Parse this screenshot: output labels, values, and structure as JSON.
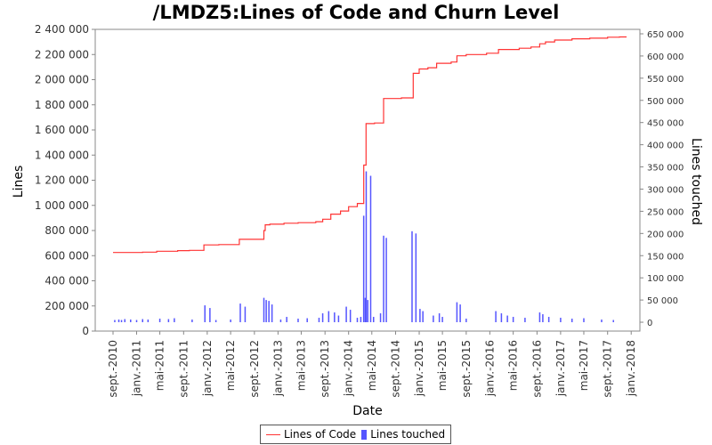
{
  "chart_data": {
    "type": "line",
    "title": "/LMDZ5:Lines of Code and Churn Level",
    "xlabel": "Date",
    "ylabel": "Lines",
    "y2label": "Lines touched",
    "xlim": [
      "2010-06-01",
      "2018-02-15"
    ],
    "ylim": [
      0,
      2400000
    ],
    "y2lim": [
      -20000,
      660000
    ],
    "x_ticks": [
      {
        "date": "2010-09-01",
        "label": "sept.-2010"
      },
      {
        "date": "2011-01-01",
        "label": "janv.-2011"
      },
      {
        "date": "2011-05-01",
        "label": "mai-2011"
      },
      {
        "date": "2011-09-01",
        "label": "sept.-2011"
      },
      {
        "date": "2012-01-01",
        "label": "janv.-2012"
      },
      {
        "date": "2012-05-01",
        "label": "mai-2012"
      },
      {
        "date": "2012-09-01",
        "label": "sept.-2012"
      },
      {
        "date": "2013-01-01",
        "label": "janv.-2013"
      },
      {
        "date": "2013-05-01",
        "label": "mai-2013"
      },
      {
        "date": "2013-09-01",
        "label": "sept.-2013"
      },
      {
        "date": "2014-01-01",
        "label": "janv.-2014"
      },
      {
        "date": "2014-05-01",
        "label": "mai-2014"
      },
      {
        "date": "2014-09-01",
        "label": "sept.-2014"
      },
      {
        "date": "2015-01-01",
        "label": "janv.-2015"
      },
      {
        "date": "2015-05-01",
        "label": "mai-2015"
      },
      {
        "date": "2015-09-01",
        "label": "sept.-2015"
      },
      {
        "date": "2016-01-01",
        "label": "janv.-2016"
      },
      {
        "date": "2016-05-01",
        "label": "mai-2016"
      },
      {
        "date": "2016-09-01",
        "label": "sept.-2016"
      },
      {
        "date": "2017-01-01",
        "label": "janv.-2017"
      },
      {
        "date": "2017-05-01",
        "label": "mai-2017"
      },
      {
        "date": "2017-09-01",
        "label": "sept.-2017"
      },
      {
        "date": "2018-01-01",
        "label": "janv.-2018"
      }
    ],
    "y_ticks": [
      {
        "value": 0,
        "label": "0"
      },
      {
        "value": 200000,
        "label": "200 000"
      },
      {
        "value": 400000,
        "label": "400 000"
      },
      {
        "value": 600000,
        "label": "600 000"
      },
      {
        "value": 800000,
        "label": "800 000"
      },
      {
        "value": 1000000,
        "label": "1 000 000"
      },
      {
        "value": 1200000,
        "label": "1 200 000"
      },
      {
        "value": 1400000,
        "label": "1 400 000"
      },
      {
        "value": 1600000,
        "label": "1 600 000"
      },
      {
        "value": 1800000,
        "label": "1 800 000"
      },
      {
        "value": 2000000,
        "label": "2 000 000"
      },
      {
        "value": 2200000,
        "label": "2 200 000"
      },
      {
        "value": 2400000,
        "label": "2 400 000"
      }
    ],
    "y2_ticks": [
      {
        "value": 0,
        "label": "0"
      },
      {
        "value": 50000,
        "label": "50 000"
      },
      {
        "value": 100000,
        "label": "100 000"
      },
      {
        "value": 150000,
        "label": "150 000"
      },
      {
        "value": 200000,
        "label": "200 000"
      },
      {
        "value": 250000,
        "label": "250 000"
      },
      {
        "value": 300000,
        "label": "300 000"
      },
      {
        "value": 350000,
        "label": "350 000"
      },
      {
        "value": 400000,
        "label": "400 000"
      },
      {
        "value": 450000,
        "label": "450 000"
      },
      {
        "value": 500000,
        "label": "500 000"
      },
      {
        "value": 550000,
        "label": "550 000"
      },
      {
        "value": 600000,
        "label": "600 000"
      },
      {
        "value": 650000,
        "label": "650 000"
      }
    ],
    "series": [
      {
        "name": "Lines of Code",
        "axis": "left",
        "style": "step-line",
        "color": "#ff3333",
        "points": [
          {
            "x": "2010-09-01",
            "y": 625000
          },
          {
            "x": "2011-02-01",
            "y": 628000
          },
          {
            "x": "2011-04-15",
            "y": 635000
          },
          {
            "x": "2011-08-01",
            "y": 640000
          },
          {
            "x": "2011-10-01",
            "y": 642000
          },
          {
            "x": "2011-12-15",
            "y": 685000
          },
          {
            "x": "2012-03-01",
            "y": 688000
          },
          {
            "x": "2012-06-15",
            "y": 730000
          },
          {
            "x": "2012-10-20",
            "y": 800000
          },
          {
            "x": "2012-10-27",
            "y": 845000
          },
          {
            "x": "2012-11-20",
            "y": 850000
          },
          {
            "x": "2013-02-01",
            "y": 858000
          },
          {
            "x": "2013-04-15",
            "y": 862000
          },
          {
            "x": "2013-07-15",
            "y": 870000
          },
          {
            "x": "2013-08-20",
            "y": 890000
          },
          {
            "x": "2013-10-01",
            "y": 930000
          },
          {
            "x": "2013-11-20",
            "y": 955000
          },
          {
            "x": "2014-01-01",
            "y": 990000
          },
          {
            "x": "2014-02-15",
            "y": 1015000
          },
          {
            "x": "2014-03-20",
            "y": 1320000
          },
          {
            "x": "2014-04-01",
            "y": 1650000
          },
          {
            "x": "2014-05-15",
            "y": 1655000
          },
          {
            "x": "2014-07-01",
            "y": 1850000
          },
          {
            "x": "2014-10-01",
            "y": 1855000
          },
          {
            "x": "2014-12-01",
            "y": 2050000
          },
          {
            "x": "2015-01-01",
            "y": 2085000
          },
          {
            "x": "2015-02-15",
            "y": 2095000
          },
          {
            "x": "2015-04-01",
            "y": 2130000
          },
          {
            "x": "2015-06-15",
            "y": 2140000
          },
          {
            "x": "2015-07-15",
            "y": 2190000
          },
          {
            "x": "2015-09-01",
            "y": 2200000
          },
          {
            "x": "2015-12-15",
            "y": 2210000
          },
          {
            "x": "2016-02-15",
            "y": 2240000
          },
          {
            "x": "2016-06-01",
            "y": 2250000
          },
          {
            "x": "2016-08-01",
            "y": 2260000
          },
          {
            "x": "2016-09-15",
            "y": 2285000
          },
          {
            "x": "2016-10-15",
            "y": 2300000
          },
          {
            "x": "2016-12-01",
            "y": 2315000
          },
          {
            "x": "2017-03-01",
            "y": 2325000
          },
          {
            "x": "2017-06-01",
            "y": 2330000
          },
          {
            "x": "2017-09-01",
            "y": 2338000
          },
          {
            "x": "2017-11-01",
            "y": 2340000
          }
        ]
      },
      {
        "name": "Lines touched",
        "axis": "right",
        "style": "bar",
        "color": "#5555ff",
        "points": [
          {
            "x": "2010-09-10",
            "y": 5000
          },
          {
            "x": "2010-10-01",
            "y": 6000
          },
          {
            "x": "2010-10-15",
            "y": 5000
          },
          {
            "x": "2010-11-01",
            "y": 7000
          },
          {
            "x": "2010-12-01",
            "y": 6000
          },
          {
            "x": "2011-01-01",
            "y": 5000
          },
          {
            "x": "2011-02-01",
            "y": 7000
          },
          {
            "x": "2011-03-01",
            "y": 6000
          },
          {
            "x": "2011-05-01",
            "y": 8000
          },
          {
            "x": "2011-06-15",
            "y": 7000
          },
          {
            "x": "2011-07-15",
            "y": 9000
          },
          {
            "x": "2011-10-15",
            "y": 6000
          },
          {
            "x": "2011-12-20",
            "y": 38000
          },
          {
            "x": "2012-01-15",
            "y": 32000
          },
          {
            "x": "2012-02-15",
            "y": 5000
          },
          {
            "x": "2012-05-01",
            "y": 6000
          },
          {
            "x": "2012-06-20",
            "y": 42000
          },
          {
            "x": "2012-07-15",
            "y": 35000
          },
          {
            "x": "2012-10-20",
            "y": 55000
          },
          {
            "x": "2012-11-01",
            "y": 50000
          },
          {
            "x": "2012-11-15",
            "y": 48000
          },
          {
            "x": "2012-12-01",
            "y": 40000
          },
          {
            "x": "2013-01-15",
            "y": 6000
          },
          {
            "x": "2013-02-15",
            "y": 12000
          },
          {
            "x": "2013-04-15",
            "y": 8000
          },
          {
            "x": "2013-06-01",
            "y": 9000
          },
          {
            "x": "2013-08-01",
            "y": 10000
          },
          {
            "x": "2013-08-20",
            "y": 20000
          },
          {
            "x": "2013-09-20",
            "y": 25000
          },
          {
            "x": "2013-10-20",
            "y": 22000
          },
          {
            "x": "2013-11-10",
            "y": 15000
          },
          {
            "x": "2013-12-20",
            "y": 35000
          },
          {
            "x": "2014-01-10",
            "y": 28000
          },
          {
            "x": "2014-02-15",
            "y": 10000
          },
          {
            "x": "2014-03-05",
            "y": 12000
          },
          {
            "x": "2014-03-20",
            "y": 240000
          },
          {
            "x": "2014-03-28",
            "y": 55000
          },
          {
            "x": "2014-04-02",
            "y": 340000
          },
          {
            "x": "2014-04-10",
            "y": 50000
          },
          {
            "x": "2014-04-25",
            "y": 330000
          },
          {
            "x": "2014-05-10",
            "y": 12000
          },
          {
            "x": "2014-06-15",
            "y": 20000
          },
          {
            "x": "2014-07-01",
            "y": 195000
          },
          {
            "x": "2014-07-15",
            "y": 190000
          },
          {
            "x": "2014-11-25",
            "y": 205000
          },
          {
            "x": "2014-12-15",
            "y": 200000
          },
          {
            "x": "2015-01-05",
            "y": 30000
          },
          {
            "x": "2015-01-20",
            "y": 25000
          },
          {
            "x": "2015-03-15",
            "y": 15000
          },
          {
            "x": "2015-04-15",
            "y": 20000
          },
          {
            "x": "2015-05-01",
            "y": 12000
          },
          {
            "x": "2015-07-15",
            "y": 45000
          },
          {
            "x": "2015-08-01",
            "y": 40000
          },
          {
            "x": "2015-09-01",
            "y": 8000
          },
          {
            "x": "2016-02-01",
            "y": 25000
          },
          {
            "x": "2016-03-01",
            "y": 20000
          },
          {
            "x": "2016-04-01",
            "y": 15000
          },
          {
            "x": "2016-05-01",
            "y": 12000
          },
          {
            "x": "2016-07-01",
            "y": 10000
          },
          {
            "x": "2016-09-15",
            "y": 22000
          },
          {
            "x": "2016-10-01",
            "y": 18000
          },
          {
            "x": "2016-11-01",
            "y": 12000
          },
          {
            "x": "2017-01-01",
            "y": 10000
          },
          {
            "x": "2017-03-01",
            "y": 8000
          },
          {
            "x": "2017-05-01",
            "y": 9000
          },
          {
            "x": "2017-08-01",
            "y": 6000
          },
          {
            "x": "2017-10-01",
            "y": 5000
          }
        ]
      }
    ],
    "legend": {
      "position": "bottom",
      "entries": [
        {
          "label": "Lines of Code",
          "color": "#ff3333"
        },
        {
          "label": "Lines touched",
          "color": "#5555ff"
        }
      ]
    },
    "grid": false
  }
}
